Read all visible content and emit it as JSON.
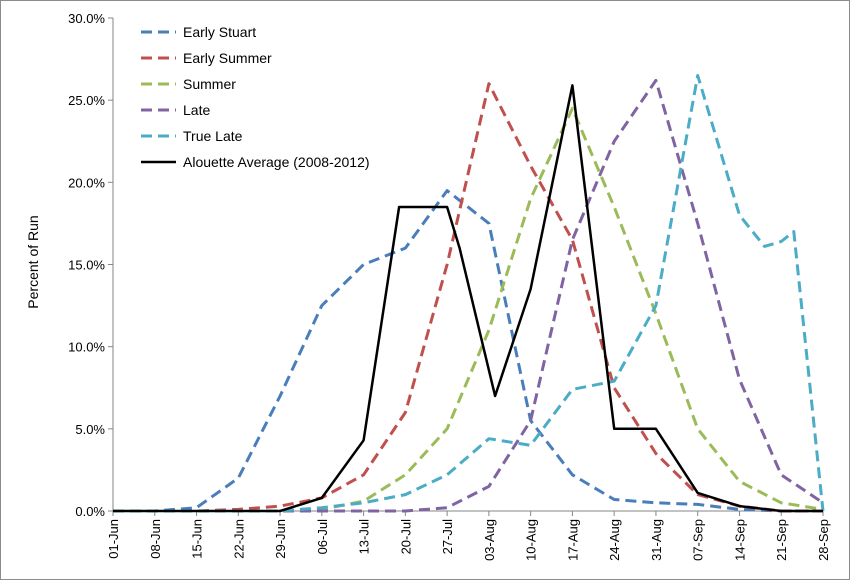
{
  "chart_data": {
    "type": "line",
    "title": "",
    "xlabel": "",
    "ylabel": "Percent of Run",
    "ylim": [
      0,
      0.3
    ],
    "yticks": [
      "0.0%",
      "5.0%",
      "10.0%",
      "15.0%",
      "20.0%",
      "25.0%",
      "30.0%"
    ],
    "grid": false,
    "legend_position": "top-left",
    "categories": [
      "01-Jun",
      "08-Jun",
      "15-Jun",
      "22-Jun",
      "29-Jun",
      "06-Jul",
      "13-Jul",
      "20-Jul",
      "27-Jul",
      "03-Aug",
      "10-Aug",
      "17-Aug",
      "24-Aug",
      "31-Aug",
      "07-Sep",
      "14-Sep",
      "21-Sep",
      "28-Sep"
    ],
    "series": [
      {
        "name": "Early Stuart",
        "color": "#4a7eba",
        "style": "dashed",
        "x": [
          0,
          1,
          2,
          3,
          4,
          5,
          6,
          7,
          8,
          9,
          10,
          11,
          12,
          13,
          14,
          15,
          16,
          17
        ],
        "values": [
          0,
          0,
          0.002,
          0.02,
          0.07,
          0.125,
          0.15,
          0.16,
          0.195,
          0.175,
          0.055,
          0.022,
          0.007,
          0.005,
          0.004,
          0.001,
          0,
          0
        ]
      },
      {
        "name": "Early Summer",
        "color": "#c0504d",
        "style": "dashed",
        "x": [
          0,
          1,
          2,
          3,
          4,
          5,
          6,
          7,
          8,
          9,
          10,
          11,
          12,
          13,
          14,
          15,
          16,
          17
        ],
        "values": [
          0,
          0,
          0,
          0.001,
          0.003,
          0.008,
          0.022,
          0.06,
          0.15,
          0.26,
          0.21,
          0.165,
          0.075,
          0.035,
          0.01,
          0.003,
          0,
          0
        ]
      },
      {
        "name": "Summer",
        "color": "#9bbb59",
        "style": "dashed",
        "x": [
          0,
          1,
          2,
          3,
          4,
          5,
          6,
          7,
          8,
          9,
          10,
          11,
          12,
          13,
          14,
          15,
          16,
          17
        ],
        "values": [
          0,
          0,
          0,
          0,
          0,
          0.001,
          0.006,
          0.022,
          0.05,
          0.11,
          0.19,
          0.245,
          0.185,
          0.12,
          0.05,
          0.018,
          0.005,
          0.001
        ]
      },
      {
        "name": "Late",
        "color": "#8064a2",
        "style": "dashed",
        "x": [
          0,
          1,
          2,
          3,
          4,
          5,
          6,
          7,
          8,
          9,
          10,
          11,
          12,
          13,
          14,
          15,
          16,
          17
        ],
        "values": [
          0,
          0,
          0,
          0,
          0,
          0,
          0,
          0,
          0.002,
          0.015,
          0.055,
          0.165,
          0.225,
          0.262,
          0.175,
          0.08,
          0.022,
          0.005
        ]
      },
      {
        "name": "True Late",
        "color": "#4bacc6",
        "style": "dashed",
        "x": [
          0,
          1,
          2,
          3,
          4,
          5,
          6,
          7,
          8,
          9,
          10,
          11,
          12,
          13,
          14,
          15,
          15.6,
          16,
          16.3,
          17
        ],
        "values": [
          0,
          0,
          0,
          0,
          0,
          0.002,
          0.005,
          0.01,
          0.022,
          0.044,
          0.04,
          0.074,
          0.079,
          0.125,
          0.265,
          0.18,
          0.161,
          0.164,
          0.17,
          0
        ]
      },
      {
        "name": "Alouette Average (2008-2012)",
        "color": "#000000",
        "style": "solid",
        "x": [
          0,
          1,
          2,
          3,
          4,
          5,
          6,
          6.85,
          7.15,
          8,
          8.3,
          9.15,
          10,
          11,
          12,
          13,
          14,
          15,
          16,
          17
        ],
        "values": [
          0,
          0,
          0,
          0,
          0,
          0.008,
          0.043,
          0.185,
          0.185,
          0.185,
          0.16,
          0.07,
          0.135,
          0.259,
          0.05,
          0.05,
          0.011,
          0.003,
          0,
          0
        ]
      }
    ]
  }
}
